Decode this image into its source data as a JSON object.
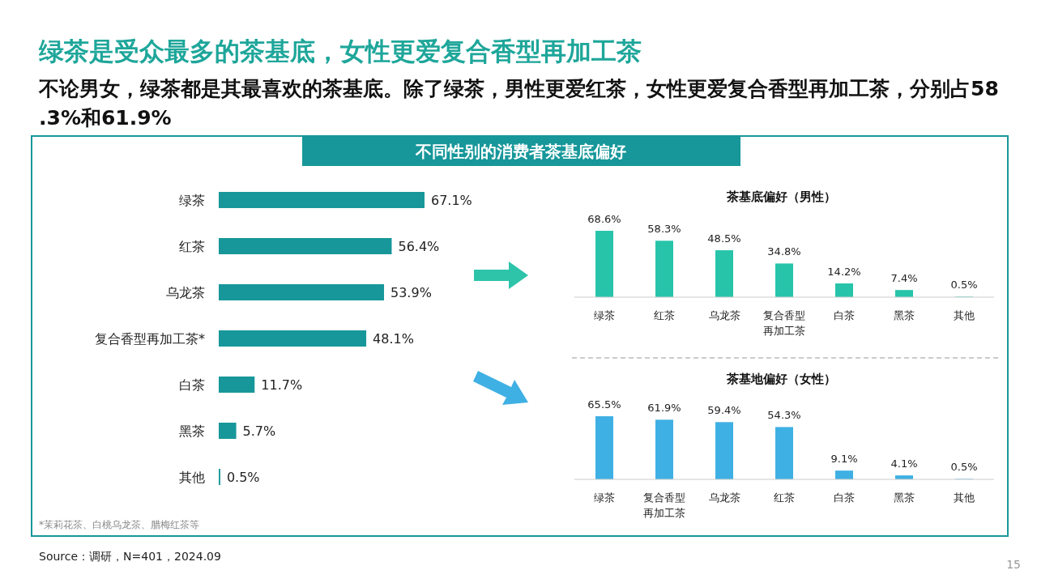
{
  "chart_data": [
    {
      "type": "other",
      "title": "绿茶是受众最多的茶基底，女性更爱复合香型再加工茶",
      "subtitle": "不论男女，绿茶都是其最喜欢的茶基底。除了绿茶，男性更爱红茶，女性更爱复合香型再加工茶，分别占58.3%和61.9%",
      "annotations": [
        "不同性别的消费者茶基底偏好",
        "Source：调研，N=401，2024.09",
        "15"
      ]
    },
    {
      "type": "bar",
      "orientation": "horizontal",
      "categories": [
        "绿茶",
        "红茶",
        "乌龙茶",
        "复合香型再加工茶*",
        "白茶",
        "黑茶",
        "其他"
      ],
      "values": [
        67.1,
        56.4,
        53.9,
        48.1,
        11.7,
        5.7,
        0.5
      ],
      "value_labels": [
        "67.1%",
        "56.4%",
        "53.9%",
        "48.1%",
        "11.7%",
        "5.7%",
        "0.5%"
      ],
      "color": "#17979a",
      "annotations": [
        "*茉莉花茶、白桃乌龙茶、腊梅红茶等"
      ]
    },
    {
      "type": "bar",
      "title": "茶基底偏好（男性）",
      "categories": [
        "绿茶",
        "红茶",
        "乌龙茶",
        "复合香型再加工茶",
        "白茶",
        "黑茶",
        "其他"
      ],
      "values": [
        68.6,
        58.3,
        48.5,
        34.8,
        14.2,
        7.4,
        0.5
      ],
      "value_labels": [
        "68.6%",
        "58.3%",
        "48.5%",
        "34.8%",
        "14.2%",
        "7.4%",
        "0.5%"
      ],
      "color": "#27c4aa"
    },
    {
      "type": "bar",
      "title": "茶基地偏好（女性）",
      "categories": [
        "绿茶",
        "复合香型再加工茶",
        "乌龙茶",
        "红茶",
        "白茶",
        "黑茶",
        "其他"
      ],
      "values": [
        65.5,
        61.9,
        59.4,
        54.3,
        9.1,
        4.1,
        0.5
      ],
      "value_labels": [
        "65.5%",
        "61.9%",
        "59.4%",
        "54.3%",
        "9.1%",
        "4.1%",
        "0.5%"
      ],
      "color": "#3fb0e4"
    }
  ]
}
